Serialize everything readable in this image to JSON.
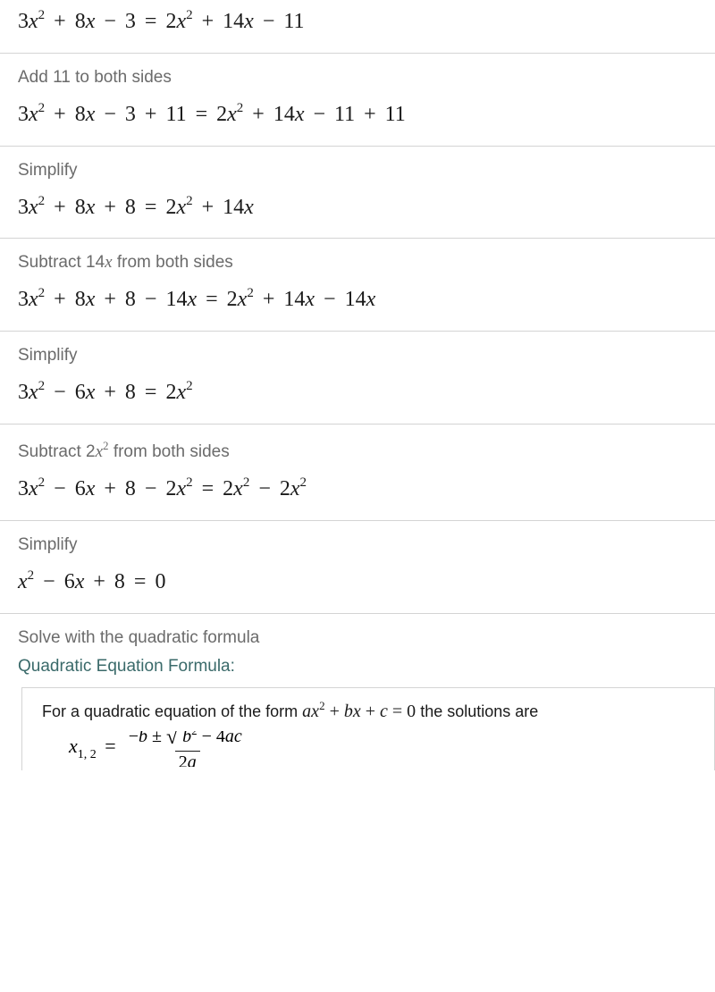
{
  "steps": [
    {
      "label": null,
      "equation_html": "3<span class='it'>x</span><span class='sup'>2</span> <span class='op'>+</span> 8<span class='it'>x</span> <span class='op'>&minus;</span> 3 <span class='op'>=</span> 2<span class='it'>x</span><span class='sup'>2</span> <span class='op'>+</span> 14<span class='it'>x</span> <span class='op'>&minus;</span> 11"
    },
    {
      "label": "Add 11 to both sides",
      "equation_html": "3<span class='it'>x</span><span class='sup'>2</span> <span class='op'>+</span> 8<span class='it'>x</span> <span class='op'>&minus;</span> 3 <span class='op'>+</span> 11 <span class='op'>=</span> 2<span class='it'>x</span><span class='sup'>2</span> <span class='op'>+</span> 14<span class='it'>x</span> <span class='op'>&minus;</span> 11 <span class='op'>+</span> 11"
    },
    {
      "label": "Simplify",
      "equation_html": "3<span class='it'>x</span><span class='sup'>2</span> <span class='op'>+</span> 8<span class='it'>x</span> <span class='op'>+</span> 8 <span class='op'>=</span> 2<span class='it'>x</span><span class='sup'>2</span> <span class='op'>+</span> 14<span class='it'>x</span>"
    },
    {
      "label": "Subtract 14<span class='it' style='font-family:Times New Roman,serif'>x</span> from both sides",
      "equation_html": "3<span class='it'>x</span><span class='sup'>2</span> <span class='op'>+</span> 8<span class='it'>x</span> <span class='op'>+</span> 8 <span class='op'>&minus;</span> 14<span class='it'>x</span> <span class='op'>=</span> 2<span class='it'>x</span><span class='sup'>2</span> <span class='op'>+</span> 14<span class='it'>x</span> <span class='op'>&minus;</span> 14<span class='it'>x</span>"
    },
    {
      "label": "Simplify",
      "equation_html": "3<span class='it'>x</span><span class='sup'>2</span> <span class='op'>&minus;</span> 6<span class='it'>x</span> <span class='op'>+</span> 8 <span class='op'>=</span> 2<span class='it'>x</span><span class='sup'>2</span>"
    },
    {
      "label": "Subtract 2<span class='it' style='font-family:Times New Roman,serif'>x</span><span class='sup' style='font-family:Times New Roman,serif;font-size:13px;vertical-align:8px'>2</span> from both sides",
      "equation_html": "3<span class='it'>x</span><span class='sup'>2</span> <span class='op'>&minus;</span> 6<span class='it'>x</span> <span class='op'>+</span> 8 <span class='op'>&minus;</span> 2<span class='it'>x</span><span class='sup'>2</span> <span class='op'>=</span> 2<span class='it'>x</span><span class='sup'>2</span> <span class='op'>&minus;</span> 2<span class='it'>x</span><span class='sup'>2</span>"
    },
    {
      "label": "Simplify",
      "equation_html": "<span class='it'>x</span><span class='sup'>2</span> <span class='op'>&minus;</span> 6<span class='it'>x</span> <span class='op'>+</span> 8 <span class='op'>=</span> 0"
    }
  ],
  "footer": {
    "label": "Solve with the quadratic formula",
    "header": "Quadratic Equation Formula:",
    "description_prefix": "For a quadratic equation of the form ",
    "description_math": "<span class='it'>ax</span><span class='sup rm'>2</span> <span class='rm'>+</span> <span class='it'>bx</span> <span class='rm'>+</span> <span class='it'>c</span> <span class='rm'>= 0</span>",
    "description_suffix": " the solutions are",
    "formula_lhs": "<span class='it'>x</span><span class='sub'>1, 2</span> <span style='margin:0 4px'>=</span>",
    "formula_num": "&minus;<span class='it'>b</span> &plusmn; <span class='sqrt-sym'>&radic;</span><span class='overline'>&nbsp;<span class='it'>b</span><span class='supf'>2</span> &minus; 4<span class='it'>ac</span>&nbsp;</span>",
    "formula_den": "2<span class='it'>a</span>"
  },
  "colors": {
    "text": "#1a1a1a",
    "label": "#6b6b6b",
    "divider": "#d4d4d4",
    "formula_header": "#3a6a6a",
    "background": "#ffffff"
  },
  "typography": {
    "label_fontsize": 19,
    "equation_fontsize": 24,
    "equation_font": "Times New Roman, serif",
    "body_font": "Segoe UI, Arial, sans-serif"
  }
}
